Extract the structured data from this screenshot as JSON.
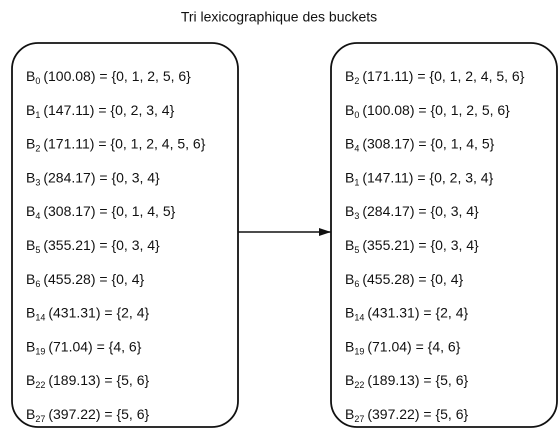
{
  "title": "Tri lexicographique des buckets",
  "left": {
    "items": [
      {
        "name": "B",
        "sub": "0",
        "text": "(100.08) = {0, 1, 2, 5, 6}"
      },
      {
        "name": "B",
        "sub": "1",
        "text": "(147.11) = {0, 2, 3, 4}"
      },
      {
        "name": "B",
        "sub": "2",
        "text": "(171.11) = {0, 1, 2, 4, 5, 6}"
      },
      {
        "name": "B",
        "sub": "3",
        "text": "(284.17) = {0, 3, 4}"
      },
      {
        "name": "B",
        "sub": "4",
        "text": "(308.17) = {0, 1, 4, 5}"
      },
      {
        "name": "B",
        "sub": "5",
        "text": "(355.21) = {0, 3, 4}"
      },
      {
        "name": "B",
        "sub": "6",
        "text": "(455.28) = {0, 4}"
      },
      {
        "name": "B",
        "sub": "14",
        "text": "(431.31) = {2, 4}"
      },
      {
        "name": "B",
        "sub": "19",
        "text": "(71.04) = {4, 6}"
      },
      {
        "name": "B",
        "sub": "22",
        "text": "(189.13) = {5, 6}"
      },
      {
        "name": "B",
        "sub": "27",
        "text": "(397.22) = {5, 6}"
      }
    ]
  },
  "right": {
    "items": [
      {
        "name": "B",
        "sub": "2",
        "text": "(171.11) = {0, 1, 2, 4, 5, 6}"
      },
      {
        "name": "B",
        "sub": "0",
        "text": "(100.08) = {0, 1, 2, 5, 6}"
      },
      {
        "name": "B",
        "sub": "4",
        "text": "(308.17) = {0, 1, 4, 5}"
      },
      {
        "name": "B",
        "sub": "1",
        "text": "(147.11) = {0, 2, 3, 4}"
      },
      {
        "name": "B",
        "sub": "3",
        "text": "(284.17) = {0, 3, 4}"
      },
      {
        "name": "B",
        "sub": "5",
        "text": "(355.21) = {0, 3, 4}"
      },
      {
        "name": "B",
        "sub": "6",
        "text": "(455.28) = {0, 4}"
      },
      {
        "name": "B",
        "sub": "14",
        "text": "(431.31) = {2, 4}"
      },
      {
        "name": "B",
        "sub": "19",
        "text": "(71.04) = {4, 6}"
      },
      {
        "name": "B",
        "sub": "22",
        "text": "(189.13) = {5, 6}"
      },
      {
        "name": "B",
        "sub": "27",
        "text": "(397.22) = {5, 6}"
      }
    ]
  }
}
